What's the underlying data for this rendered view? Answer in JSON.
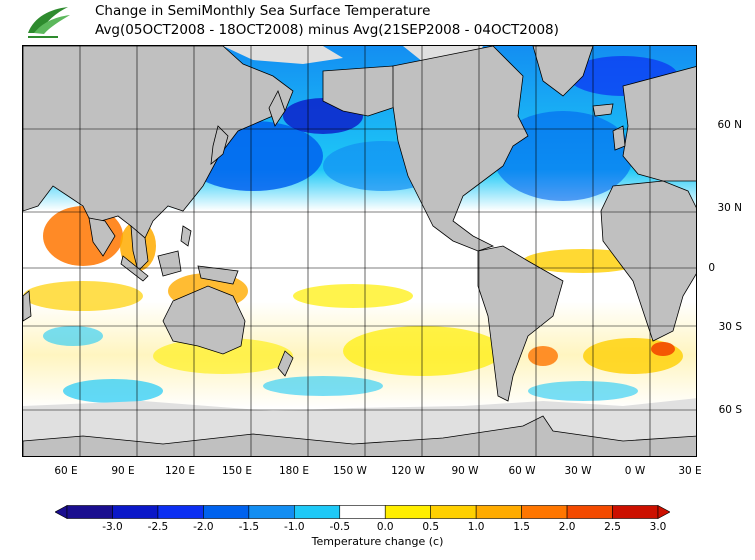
{
  "header": {
    "title_line1": "Change in SemiMonthly Sea Surface Temperature",
    "title_line2": "Avg(05OCT2008 - 18OCT2008) minus Avg(21SEP2008 - 04OCT2008)"
  },
  "map": {
    "lon_labels": [
      "60 E",
      "90 E",
      "120 E",
      "150 E",
      "180 E",
      "150 W",
      "120 W",
      "90 W",
      "60 W",
      "30 W",
      "0 W",
      "30 E"
    ],
    "lat_labels": [
      "60 N",
      "30 N",
      "0",
      "30 S",
      "60 S"
    ],
    "land_color": "#c0c0c0",
    "ice_color": "#e0e0e0"
  },
  "colorbar": {
    "title": "Temperature change  (c)",
    "ticks": [
      "-3.0",
      "-2.5",
      "-2.0",
      "-1.5",
      "-1.0",
      "-0.5",
      "0.0",
      "0.5",
      "1.0",
      "1.5",
      "2.0",
      "2.5",
      "3.0"
    ],
    "colors": [
      "#1a0e8f",
      "#0b18c8",
      "#0c2ff2",
      "#0062ee",
      "#138ef2",
      "#1ec9f7",
      "#ffffff",
      "#ffee00",
      "#ffd000",
      "#ffab00",
      "#ff7600",
      "#f34a00",
      "#cc1000"
    ]
  }
}
